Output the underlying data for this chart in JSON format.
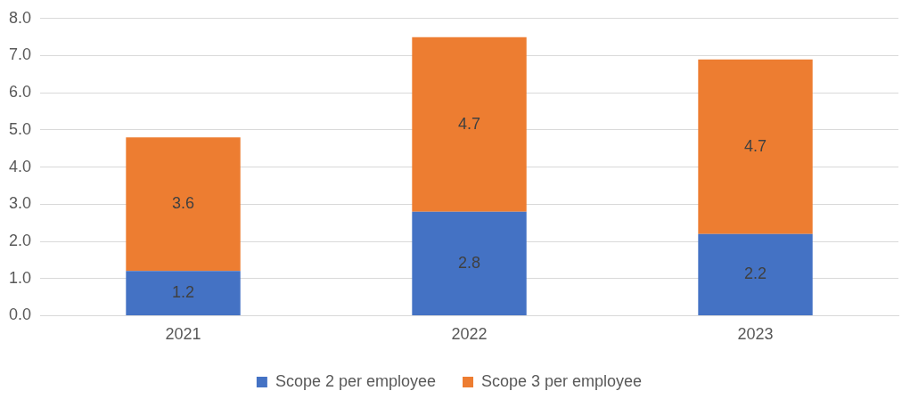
{
  "chart_data": {
    "type": "bar",
    "stacked": true,
    "categories": [
      "2021",
      "2022",
      "2023"
    ],
    "series": [
      {
        "name": "Scope 2 per employee",
        "color": "#4472c4",
        "values": [
          1.2,
          2.8,
          2.2
        ]
      },
      {
        "name": "Scope 3 per employee",
        "color": "#ed7d31",
        "values": [
          3.6,
          4.7,
          4.7
        ]
      }
    ],
    "ylim": [
      0,
      8
    ],
    "yticks": [
      {
        "value": 0,
        "label": "0.0"
      },
      {
        "value": 1,
        "label": "1.0"
      },
      {
        "value": 2,
        "label": "2.0"
      },
      {
        "value": 3,
        "label": "3.0"
      },
      {
        "value": 4,
        "label": "4.0"
      },
      {
        "value": 5,
        "label": "5.0"
      },
      {
        "value": 6,
        "label": "6.0"
      },
      {
        "value": 7,
        "label": "7.0"
      },
      {
        "value": 8,
        "label": "8.0"
      }
    ],
    "grid": "y",
    "legend": "bottom",
    "data_labels": true
  }
}
